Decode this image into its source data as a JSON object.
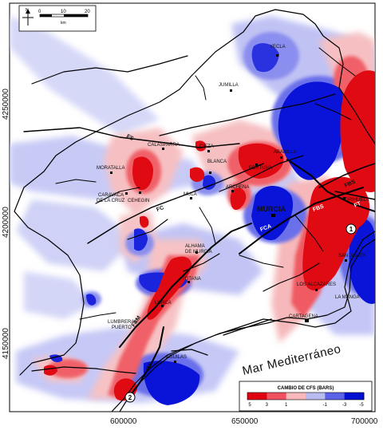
{
  "scale_bar": {
    "north": "N",
    "ticks": [
      "0",
      "10",
      "20"
    ],
    "unit": "km"
  },
  "axes": {
    "y_ticks": [
      "4250000",
      "4200000",
      "4150000"
    ],
    "x_ticks": [
      "600000",
      "650000",
      "700000"
    ]
  },
  "towns": {
    "yecla": "YECLA",
    "jumilla": "JUMILLA",
    "calasparra": "CALASPARRA",
    "cieza": "CIEZA",
    "abanilla": "ABANILLA",
    "fortuna": "FORTUNA",
    "moratalla": "MORATALLA",
    "blanca": "BLANCA",
    "caravaca": "CARAVACA",
    "de_la_cruz": "DE LA CRUZ",
    "cehegin": "CEHEGIN",
    "mula": "MULA",
    "archena": "ARCHENA",
    "murcia": "MURCIA",
    "orihuela": "ORIHUELA",
    "alhama": "ALHAMA",
    "de_murcia": "DE MURCIA",
    "totana": "TOTANA",
    "lorca": "LORCA",
    "lumbreras": "LUMBRERAS",
    "puerto": "PUERTO",
    "aguilas": "AGUILAS",
    "san_javier": "SAN JAVIER",
    "los_alcazares": "LOS ALCAZARES",
    "la_manga": "LA MANGA",
    "cartagena": "CARTAGENA"
  },
  "faults": {
    "fs": "FS",
    "fc": "FC",
    "fam": "FAM",
    "fp": "FP",
    "fca": "FCA",
    "fbs": "FBS",
    "fbs2": "FBS",
    "ft": "FT"
  },
  "epicenters": {
    "e1": "1",
    "e2": "2"
  },
  "sea_label": "Mar  Mediterráneo",
  "legend": {
    "title": "CAMBIO DE CFS (BARS)",
    "ticks": [
      "5",
      "3",
      "1",
      "-1",
      "-3",
      "-5"
    ],
    "colors": [
      "#e0000f",
      "#f05060",
      "#f8b8bc",
      "#b8bcf0",
      "#5a62e8",
      "#0010d0"
    ]
  },
  "colors": {
    "strong_red": "#e00a12",
    "mid_red": "#f0646c",
    "light_red": "#f8c4c6",
    "strong_blue": "#0a14d8",
    "mid_blue": "#6a70ea",
    "light_blue": "#c4c6f6"
  }
}
